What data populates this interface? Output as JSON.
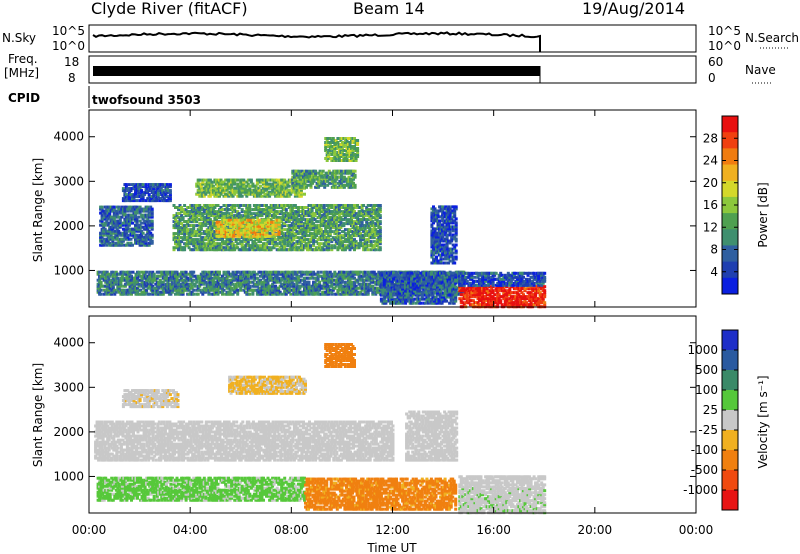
{
  "header": {
    "station": "Clyde River (fitACF)",
    "beam": "Beam 14",
    "date": "19/Aug/2014"
  },
  "params": {
    "nsky_label": "N.Sky",
    "nsky_ticks": [
      "10^5",
      "10^0"
    ],
    "nsearch_label": "N.Search",
    "nsearch_ticks": [
      "10^5",
      "10^0"
    ],
    "freq_label_1": "Freq.",
    "freq_label_2": "[MHz]",
    "freq_ticks": [
      "18",
      "8"
    ],
    "nave_label": "Nave",
    "nave_ticks": [
      "60",
      "0"
    ],
    "cpid_label": "CPID",
    "cpid_value": "twofsound 3503"
  },
  "colors": {
    "power": [
      "#0a1fe0",
      "#1f3fb0",
      "#2f5fa0",
      "#3f8f6f",
      "#4fa050",
      "#8cc83c",
      "#d4d82a",
      "#f0b020",
      "#f07c10",
      "#f04010",
      "#e81010"
    ],
    "velocity": [
      "#1e2ec8",
      "#2a5aa0",
      "#3a8a68",
      "#56c83a",
      "#c8c8c8",
      "#f0b020",
      "#f08010",
      "#f04a10",
      "#e81414"
    ]
  },
  "chart_data": [
    {
      "type": "heatmap",
      "name": "power-panel",
      "xlabel": "",
      "ylabel": "Slant Range [km]",
      "xlim": [
        0,
        24
      ],
      "ylim": [
        180,
        4600
      ],
      "yticks": [
        "1000",
        "2000",
        "3000",
        "4000"
      ],
      "colorbar": {
        "label": "Power [dB]",
        "ticks": [
          "4",
          "8",
          "12",
          "16",
          "20",
          "24",
          "28"
        ],
        "range": [
          0,
          32
        ]
      },
      "patches": [
        {
          "t0": 0.3,
          "t1": 14.8,
          "r0": 500,
          "r1": 1000,
          "v": 9
        },
        {
          "t0": 0.4,
          "t1": 2.5,
          "r0": 1600,
          "r1": 2500,
          "v": 7
        },
        {
          "t0": 1.3,
          "t1": 3.2,
          "r0": 2600,
          "r1": 3000,
          "v": 5
        },
        {
          "t0": 3.3,
          "t1": 11.5,
          "r0": 1500,
          "r1": 2500,
          "v": 12
        },
        {
          "t0": 4.2,
          "t1": 8.5,
          "r0": 2700,
          "r1": 3100,
          "v": 14
        },
        {
          "t0": 5.0,
          "t1": 7.5,
          "r0": 1800,
          "r1": 2200,
          "v": 20
        },
        {
          "t0": 8.0,
          "t1": 10.5,
          "r0": 2900,
          "r1": 3300,
          "v": 12
        },
        {
          "t0": 9.3,
          "t1": 10.6,
          "r0": 3500,
          "r1": 4000,
          "v": 14
        },
        {
          "t0": 11.5,
          "t1": 14.5,
          "r0": 300,
          "r1": 1000,
          "v": 6
        },
        {
          "t0": 13.5,
          "t1": 14.5,
          "r0": 1200,
          "r1": 2500,
          "v": 5
        },
        {
          "t0": 14.6,
          "t1": 18.0,
          "r0": 220,
          "r1": 700,
          "v": 30
        },
        {
          "t0": 14.6,
          "t1": 18.0,
          "r0": 700,
          "r1": 1000,
          "v": 5
        }
      ]
    },
    {
      "type": "heatmap",
      "name": "velocity-panel",
      "xlabel": "Time UT",
      "ylabel": "Slant Range [km]",
      "xlim": [
        0,
        24
      ],
      "ylim": [
        180,
        4600
      ],
      "xticks": [
        "00:00",
        "04:00",
        "08:00",
        "12:00",
        "16:00",
        "20:00",
        "00:00"
      ],
      "yticks": [
        "1000",
        "2000",
        "3000",
        "4000"
      ],
      "colorbar": {
        "label": "Velocity [m s⁻¹]",
        "ticks": [
          "1000",
          "500",
          "100",
          "25",
          "-25",
          "-100",
          "-500",
          "-1000"
        ],
        "range": [
          -1500,
          1500
        ]
      },
      "patches": [
        {
          "t0": 0.3,
          "t1": 8.5,
          "r0": 500,
          "r1": 1000,
          "v": 250
        },
        {
          "t0": 0.2,
          "t1": 12.0,
          "r0": 1400,
          "r1": 2300,
          "v": 0
        },
        {
          "t0": 1.3,
          "t1": 3.5,
          "r0": 2600,
          "r1": 3000,
          "v": -80
        },
        {
          "t0": 5.5,
          "t1": 8.5,
          "r0": 2900,
          "r1": 3300,
          "v": -200
        },
        {
          "t0": 9.3,
          "t1": 10.5,
          "r0": 3500,
          "r1": 4000,
          "v": -700
        },
        {
          "t0": 8.5,
          "t1": 14.5,
          "r0": 300,
          "r1": 1000,
          "v": -600
        },
        {
          "t0": 12.5,
          "t1": 14.5,
          "r0": 1400,
          "r1": 2500,
          "v": 0
        },
        {
          "t0": 14.6,
          "t1": 18.0,
          "r0": 220,
          "r1": 800,
          "v": 80
        },
        {
          "t0": 14.6,
          "t1": 18.0,
          "r0": 800,
          "r1": 1050,
          "v": 0
        }
      ]
    }
  ]
}
